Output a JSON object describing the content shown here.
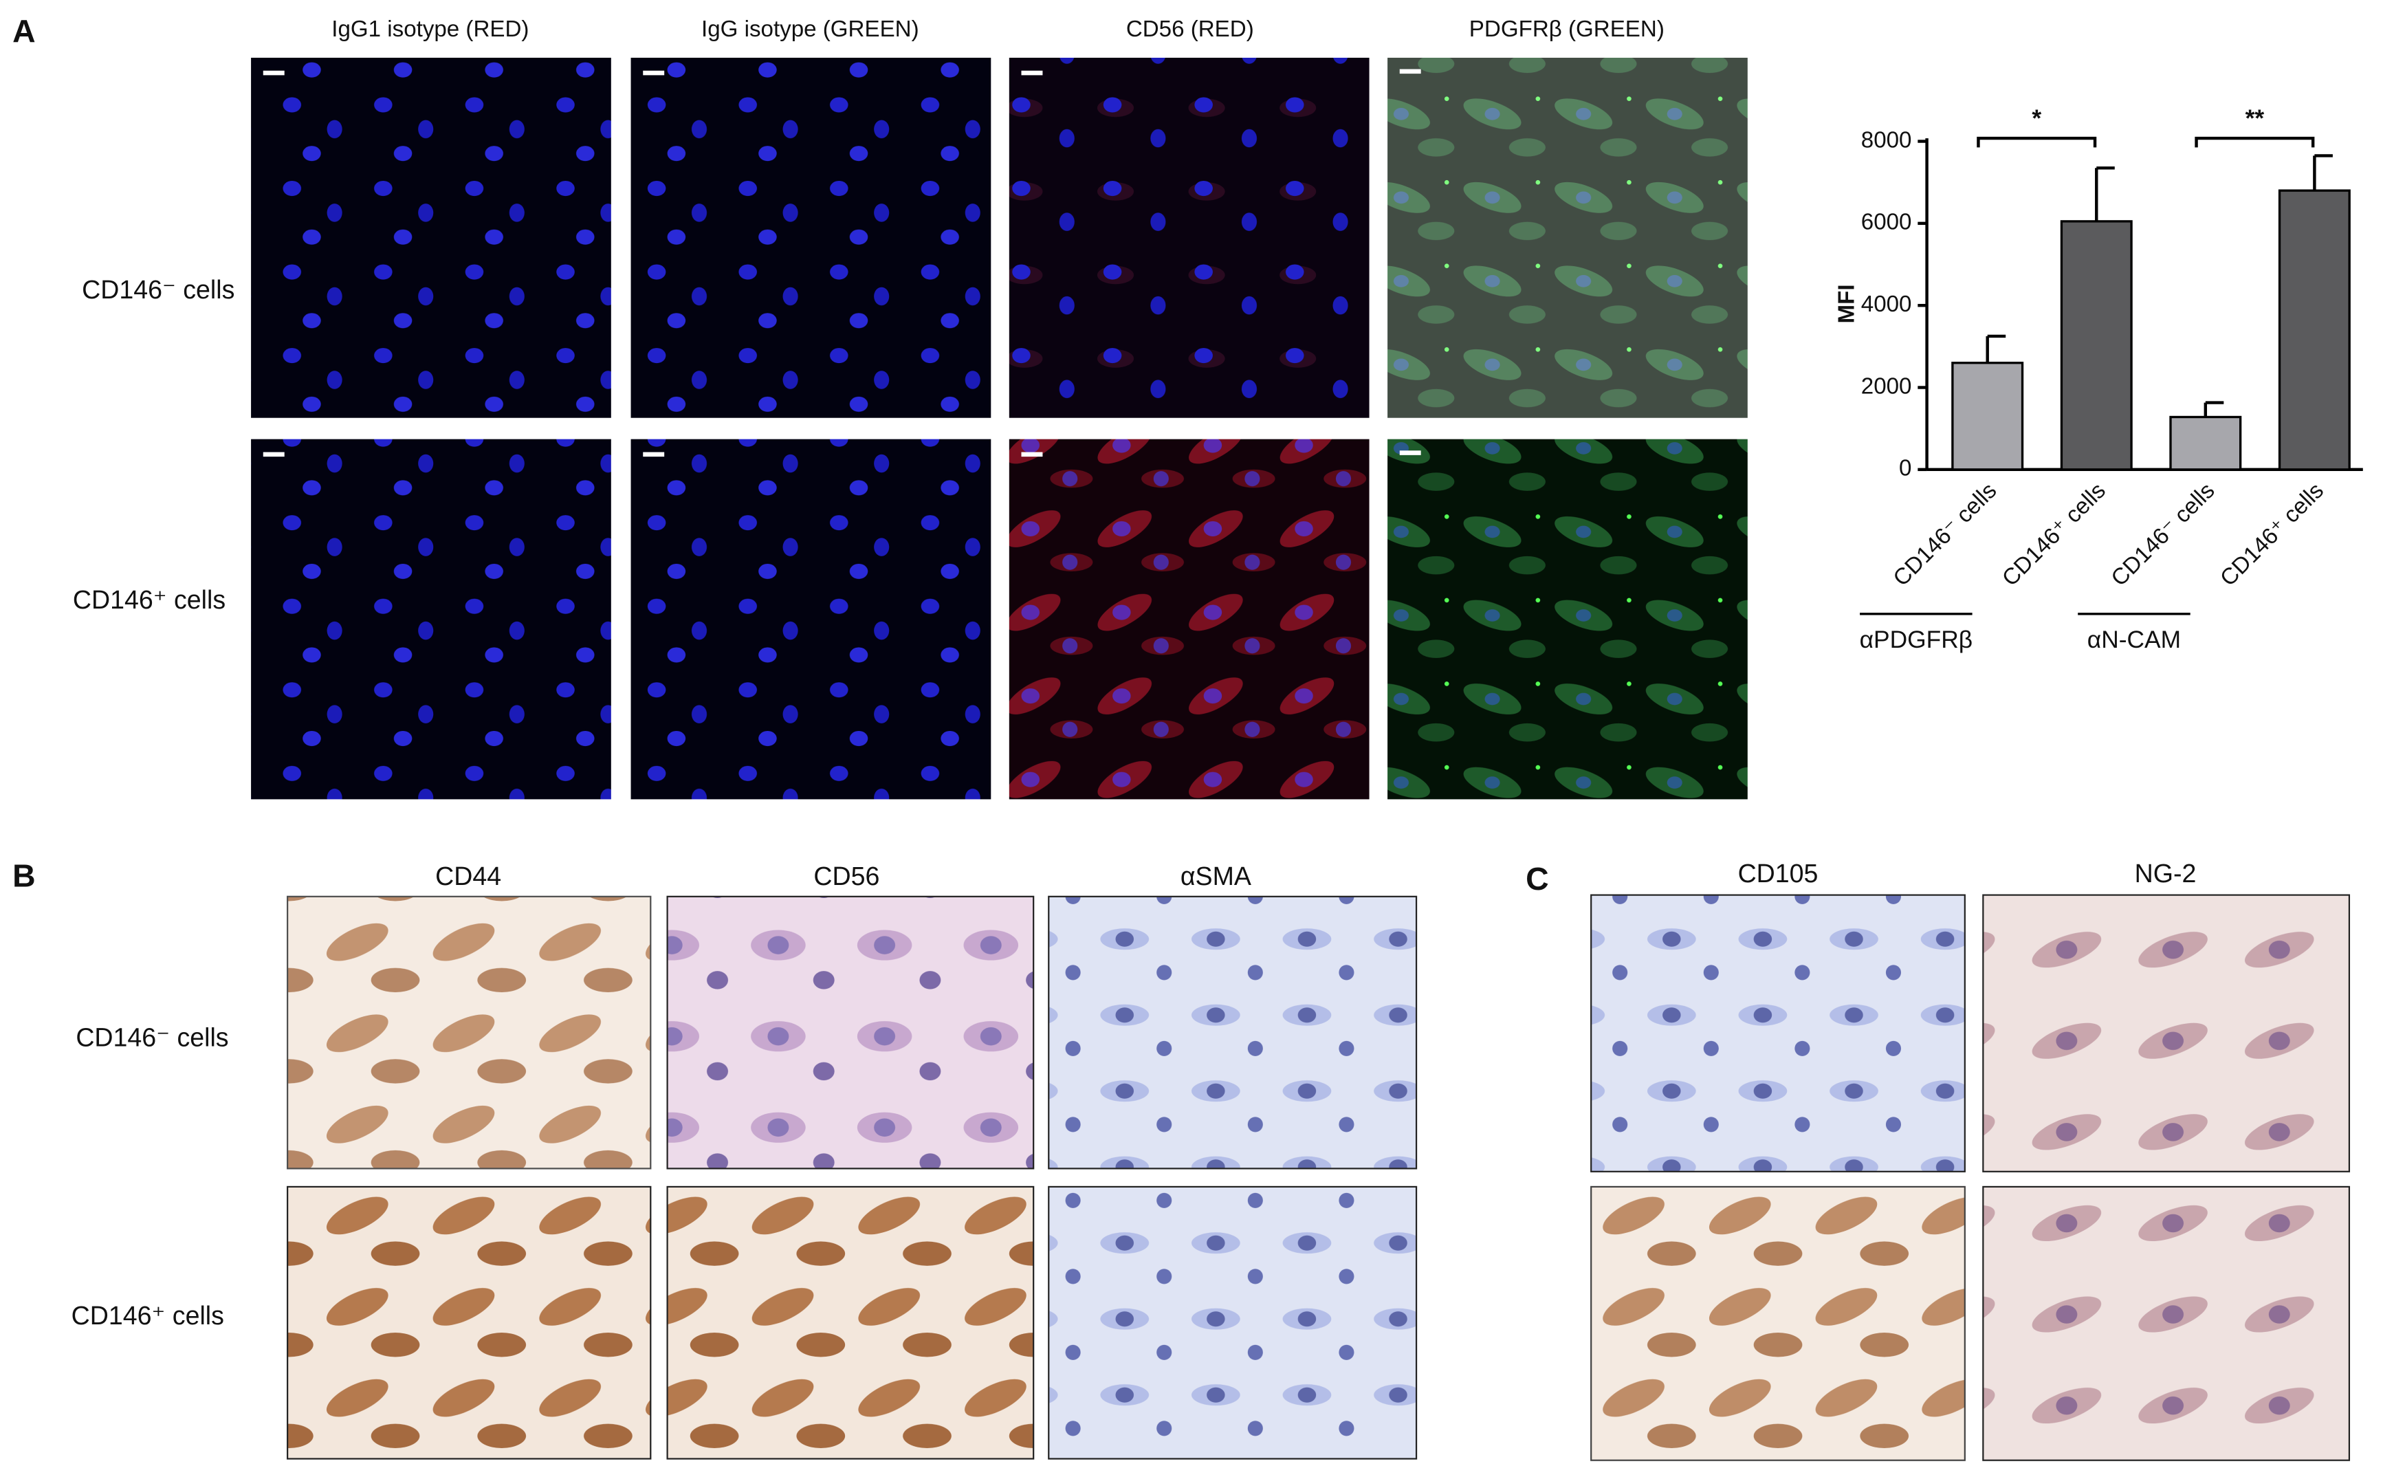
{
  "panels": {
    "A": {
      "letter": "A",
      "column_titles": [
        "IgG1 isotype (RED)",
        "IgG isotype (GREEN)",
        "CD56 (RED)",
        "PDGFRβ (GREEN)"
      ],
      "row_labels": [
        "CD146⁻ cells",
        "CD146⁺ cells"
      ]
    },
    "B": {
      "letter": "B",
      "column_titles": [
        "CD44",
        "CD56",
        "αSMA"
      ],
      "row_labels": [
        "CD146⁻ cells",
        "CD146⁺ cells"
      ]
    },
    "C": {
      "letter": "C",
      "column_titles": [
        "CD105",
        "NG-2"
      ]
    }
  },
  "chart_data": {
    "type": "bar",
    "ylabel": "MFI",
    "categories": [
      "CD146⁻ cells",
      "CD146⁺ cells",
      "CD146⁻ cells",
      "CD146⁺ cells"
    ],
    "values": [
      2600,
      6050,
      1280,
      6800
    ],
    "errors": [
      650,
      1300,
      350,
      850
    ],
    "colors": [
      "#a7a7ac",
      "#5b5b5d",
      "#a7a7ac",
      "#5b5b5d"
    ],
    "groups": [
      "αPDGFRβ",
      "αN-CAM"
    ],
    "significance": [
      "*",
      "**"
    ],
    "ylim": [
      0,
      8000
    ],
    "yticks": [
      0,
      2000,
      4000,
      6000,
      8000
    ]
  }
}
